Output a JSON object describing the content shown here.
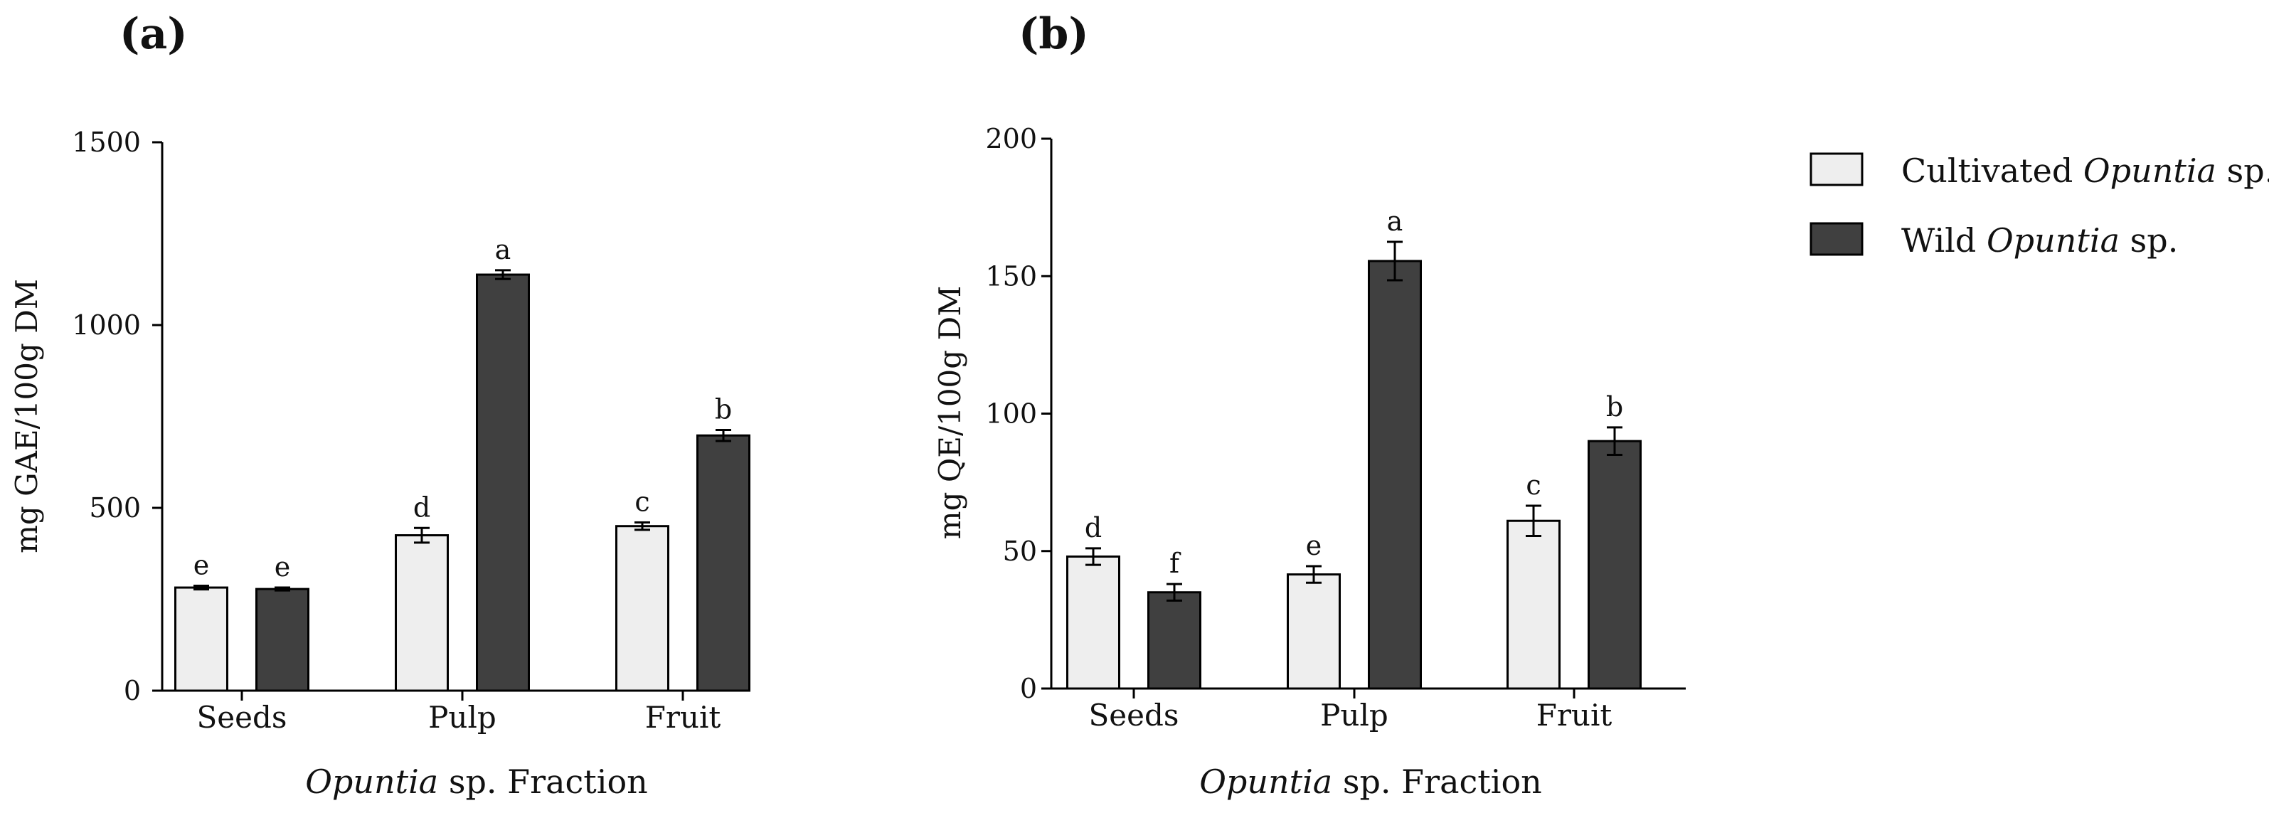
{
  "figure": {
    "legend": [
      {
        "prefix": "Cultivated ",
        "italic": "Opuntia",
        "suffix": " sp.",
        "color": "#eeeeee"
      },
      {
        "prefix": "Wild ",
        "italic": "Opuntia",
        "suffix": " sp.",
        "color": "#404040"
      }
    ]
  },
  "chart_data": [
    {
      "type": "bar",
      "panel_label": "(a)",
      "title": "",
      "categories": [
        "Seeds",
        "Pulp",
        "Fruit"
      ],
      "xlabel": {
        "italic": "Opuntia",
        "rest": " sp. Fraction"
      },
      "ylabel": "mg GAE/100g DM",
      "ylim": [
        0,
        1500
      ],
      "yticks": [
        0,
        500,
        1000,
        1500
      ],
      "series": [
        {
          "name": "Cultivated Opuntia sp.",
          "color": "#eeeeee",
          "values": [
            282,
            425,
            450
          ],
          "errors": [
            5,
            20,
            10
          ],
          "letters": [
            "e",
            "d",
            "c"
          ]
        },
        {
          "name": "Wild Opuntia sp.",
          "color": "#404040",
          "values": [
            278,
            1138,
            698
          ],
          "errors": [
            4,
            12,
            15
          ],
          "letters": [
            "e",
            "a",
            "b"
          ]
        }
      ]
    },
    {
      "type": "bar",
      "panel_label": "(b)",
      "title": "",
      "categories": [
        "Seeds",
        "Pulp",
        "Fruit"
      ],
      "xlabel": {
        "italic": "Opuntia",
        "rest": " sp. Fraction"
      },
      "ylabel": "mg QE/100g DM",
      "ylim": [
        0,
        200
      ],
      "yticks": [
        0,
        50,
        100,
        150,
        200
      ],
      "series": [
        {
          "name": "Cultivated Opuntia sp.",
          "color": "#eeeeee",
          "values": [
            48,
            41.5,
            61
          ],
          "errors": [
            3,
            3,
            5.5
          ],
          "letters": [
            "d",
            "e",
            "c"
          ]
        },
        {
          "name": "Wild Opuntia sp.",
          "color": "#404040",
          "values": [
            35,
            155.5,
            90
          ],
          "errors": [
            3,
            7,
            5
          ],
          "letters": [
            "f",
            "a",
            "b"
          ]
        }
      ]
    }
  ]
}
